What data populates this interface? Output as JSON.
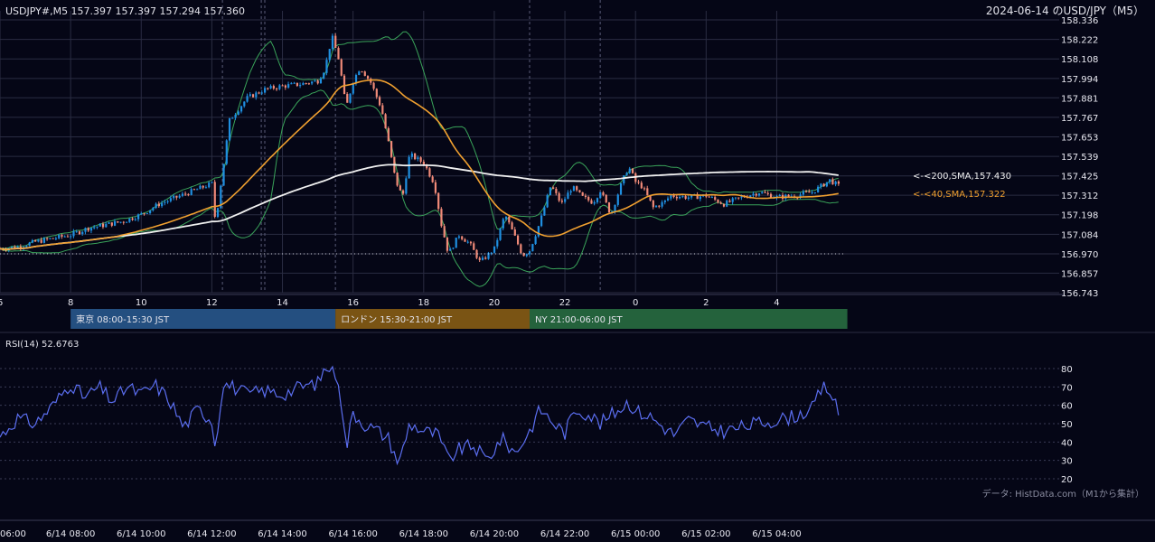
{
  "header": {
    "symbol_info": "USDJPY#,M5 157.397 157.397 157.294 157.360",
    "date_title": "2024-06-14 のUSD/JPY（M5）"
  },
  "sessions": [
    {
      "label": "東京 08:00-15:30 JST",
      "color": "#244f80"
    },
    {
      "label": "ロンドン 15:30-21:00 JST",
      "color": "#7a5414"
    },
    {
      "label": "NY 21:00-06:00 JST",
      "color": "#24623c"
    }
  ],
  "ma_labels": {
    "sma200": "<-<200,SMA,157.430",
    "sma40": "<-<40,SMA,157.322"
  },
  "rsi": {
    "label": "RSI(14) 52.6763"
  },
  "source_note": "データ: HistData.com（M1から集計）",
  "colors": {
    "background": "#050616",
    "bull": "#1f8fe0",
    "bear": "#f08a78",
    "sma200": "#f0f0f0",
    "sma40": "#f0a030",
    "bollinger": "#3aa45a",
    "rsi": "#5b6ef0",
    "grid": "#2a2c42",
    "session_line": "#5a5c78"
  },
  "chart_data": [
    {
      "type": "candlestick",
      "title": "USDJPY#,M5",
      "y_ticks": [
        "158.336",
        "158.222",
        "158.108",
        "157.994",
        "157.881",
        "157.767",
        "157.653",
        "157.539",
        "157.425",
        "157.312",
        "157.198",
        "157.084",
        "156.970",
        "156.857",
        "156.743"
      ],
      "ylim": [
        156.743,
        158.336
      ],
      "x_ticks": [
        "6",
        "8",
        "10",
        "12",
        "14",
        "16",
        "18",
        "20",
        "22",
        "0",
        "2",
        "4"
      ],
      "x_hours_since_0600": [
        0,
        2,
        4,
        6,
        8,
        10,
        12,
        14,
        16,
        18,
        20,
        22
      ],
      "xlim_hours_since_0600": [
        0,
        30
      ],
      "last_bar_hours_since_0600": 23.8,
      "reference_line": 156.97,
      "sessions_hours_since_0600": [
        [
          2,
          9.5
        ],
        [
          9.5,
          15
        ],
        [
          15,
          24
        ]
      ],
      "session_dividers_hours_since_0600": [
        6.3,
        7.4,
        7.5,
        9.5,
        15.0,
        17.0
      ],
      "price_path": [
        [
          0,
          157.0
        ],
        [
          0.5,
          157.01
        ],
        [
          1,
          157.04
        ],
        [
          1.5,
          157.06
        ],
        [
          2,
          157.08
        ],
        [
          2.5,
          157.12
        ],
        [
          3,
          157.14
        ],
        [
          3.5,
          157.16
        ],
        [
          4,
          157.2
        ],
        [
          4.5,
          157.26
        ],
        [
          5,
          157.3
        ],
        [
          5.5,
          157.34
        ],
        [
          6,
          157.38
        ],
        [
          6.1,
          157.15
        ],
        [
          6.2,
          157.3
        ],
        [
          6.5,
          157.75
        ],
        [
          7,
          157.88
        ],
        [
          7.5,
          157.93
        ],
        [
          8,
          157.95
        ],
        [
          8.5,
          157.96
        ],
        [
          9,
          157.98
        ],
        [
          9.2,
          158.05
        ],
        [
          9.4,
          158.24
        ],
        [
          9.6,
          158.1
        ],
        [
          9.8,
          157.82
        ],
        [
          10,
          157.98
        ],
        [
          10.2,
          158.06
        ],
        [
          10.5,
          157.97
        ],
        [
          10.8,
          157.82
        ],
        [
          11,
          157.62
        ],
        [
          11.2,
          157.4
        ],
        [
          11.4,
          157.3
        ],
        [
          11.6,
          157.55
        ],
        [
          12,
          157.5
        ],
        [
          12.3,
          157.38
        ],
        [
          12.5,
          157.14
        ],
        [
          12.7,
          156.97
        ],
        [
          13,
          157.08
        ],
        [
          13.3,
          157.03
        ],
        [
          13.6,
          156.92
        ],
        [
          14,
          157.0
        ],
        [
          14.3,
          157.2
        ],
        [
          14.6,
          157.06
        ],
        [
          14.8,
          156.96
        ],
        [
          15,
          156.99
        ],
        [
          15.3,
          157.16
        ],
        [
          15.6,
          157.37
        ],
        [
          15.9,
          157.26
        ],
        [
          16.2,
          157.36
        ],
        [
          16.5,
          157.3
        ],
        [
          16.8,
          157.27
        ],
        [
          17,
          157.34
        ],
        [
          17.3,
          157.2
        ],
        [
          17.6,
          157.38
        ],
        [
          17.8,
          157.48
        ],
        [
          18,
          157.39
        ],
        [
          18.2,
          157.36
        ],
        [
          18.5,
          157.24
        ],
        [
          18.8,
          157.27
        ],
        [
          19,
          157.31
        ],
        [
          19.5,
          157.3
        ],
        [
          20,
          157.31
        ],
        [
          20.5,
          157.26
        ],
        [
          21,
          157.3
        ],
        [
          21.5,
          157.33
        ],
        [
          22,
          157.3
        ],
        [
          22.5,
          157.31
        ],
        [
          23,
          157.33
        ],
        [
          23.5,
          157.4
        ],
        [
          23.8,
          157.36
        ]
      ]
    },
    {
      "type": "line",
      "title": "RSI(14)",
      "y_ticks": [
        "80",
        "70",
        "60",
        "50",
        "40",
        "30",
        "20"
      ],
      "ylim": [
        20,
        80
      ],
      "x_ticks": [
        "06:00",
        "6/14 08:00",
        "6/14 10:00",
        "6/14 12:00",
        "6/14 14:00",
        "6/14 16:00",
        "6/14 18:00",
        "6/14 20:00",
        "6/14 22:00",
        "6/15 00:00",
        "6/15 02:00",
        "6/15 04:00"
      ],
      "x_hours_since_0600": [
        0,
        2,
        4,
        6,
        8,
        10,
        12,
        14,
        16,
        18,
        20,
        22
      ],
      "xlim_hours_since_0600": [
        0,
        30
      ],
      "series": [
        {
          "name": "RSI(14)",
          "points": [
            [
              0,
              43
            ],
            [
              0.5,
              53
            ],
            [
              1,
              50
            ],
            [
              1.5,
              60
            ],
            [
              2,
              72
            ],
            [
              2.4,
              64
            ],
            [
              2.8,
              70
            ],
            [
              3.2,
              62
            ],
            [
              3.6,
              70
            ],
            [
              4,
              66
            ],
            [
              4.4,
              71
            ],
            [
              4.8,
              63
            ],
            [
              5.2,
              48
            ],
            [
              5.6,
              58
            ],
            [
              6,
              52
            ],
            [
              6.1,
              36
            ],
            [
              6.3,
              72
            ],
            [
              6.6,
              70
            ],
            [
              7,
              66
            ],
            [
              7.5,
              68
            ],
            [
              8,
              66
            ],
            [
              8.5,
              70
            ],
            [
              9,
              72
            ],
            [
              9.2,
              80
            ],
            [
              9.4,
              81
            ],
            [
              9.6,
              74
            ],
            [
              9.8,
              36
            ],
            [
              10,
              56
            ],
            [
              10.3,
              50
            ],
            [
              10.7,
              46
            ],
            [
              11,
              42
            ],
            [
              11.3,
              28
            ],
            [
              11.6,
              50
            ],
            [
              12,
              46
            ],
            [
              12.4,
              44
            ],
            [
              12.7,
              30
            ],
            [
              13,
              36
            ],
            [
              13.4,
              38
            ],
            [
              13.8,
              30
            ],
            [
              14.2,
              42
            ],
            [
              14.6,
              34
            ],
            [
              15,
              46
            ],
            [
              15.3,
              58
            ],
            [
              15.7,
              50
            ],
            [
              16,
              45
            ],
            [
              16.3,
              58
            ],
            [
              16.7,
              55
            ],
            [
              17,
              50
            ],
            [
              17.4,
              56
            ],
            [
              17.8,
              62
            ],
            [
              18,
              57
            ],
            [
              18.4,
              54
            ],
            [
              18.8,
              48
            ],
            [
              19.1,
              44
            ],
            [
              19.5,
              52
            ],
            [
              20,
              48
            ],
            [
              20.5,
              46
            ],
            [
              21,
              48
            ],
            [
              21.4,
              50
            ],
            [
              22,
              52
            ],
            [
              22.5,
              54
            ],
            [
              23,
              58
            ],
            [
              23.3,
              70
            ],
            [
              23.5,
              68
            ],
            [
              23.8,
              53
            ]
          ]
        }
      ]
    }
  ]
}
